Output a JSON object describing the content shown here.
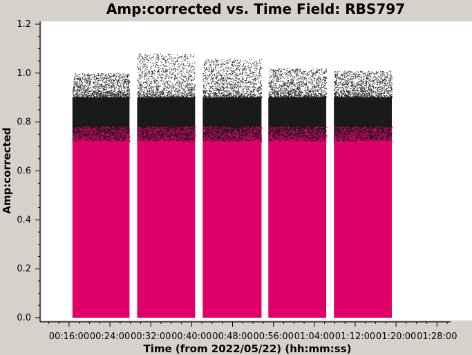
{
  "chart_data": {
    "type": "scatter",
    "title": "Amp:corrected vs. Time Field: RBS797",
    "xlabel": "Time (from 2022/05/22) (hh:mm:ss)",
    "ylabel": "Amp:corrected",
    "xlim": [
      "00:10:20",
      "01:30:40"
    ],
    "ylim": [
      0.0,
      1.2
    ],
    "y_ticks": [
      "0.0",
      "0.2",
      "0.4",
      "0.6",
      "0.8",
      "1.0",
      "1.2"
    ],
    "x_ticks": [
      "00:16:00",
      "00:24:00",
      "00:32:00",
      "00:40:00",
      "00:48:00",
      "00:56:00",
      "01:04:00",
      "01:12:00",
      "01:20:00",
      "01:28:00"
    ],
    "grid": false,
    "colors": {
      "upper_points": "#1a1a1a",
      "lower_points": "#e0006a",
      "plot_bg": "#ffffff",
      "frame_bg": "#d6d2cb"
    },
    "scans": [
      {
        "start": "00:16:40",
        "end": "00:27:50",
        "amp_min": 0.0,
        "band_edge": 0.72,
        "amp_max": 1.0
      },
      {
        "start": "00:29:20",
        "end": "00:40:40",
        "amp_min": 0.0,
        "band_edge": 0.72,
        "amp_max": 1.08
      },
      {
        "start": "00:42:10",
        "end": "00:53:40",
        "amp_min": 0.0,
        "band_edge": 0.72,
        "amp_max": 1.06
      },
      {
        "start": "00:55:00",
        "end": "01:06:20",
        "amp_min": 0.0,
        "band_edge": 0.72,
        "amp_max": 1.02
      },
      {
        "start": "01:07:50",
        "end": "01:19:10",
        "amp_min": 0.0,
        "band_edge": 0.72,
        "amp_max": 1.01
      }
    ]
  }
}
